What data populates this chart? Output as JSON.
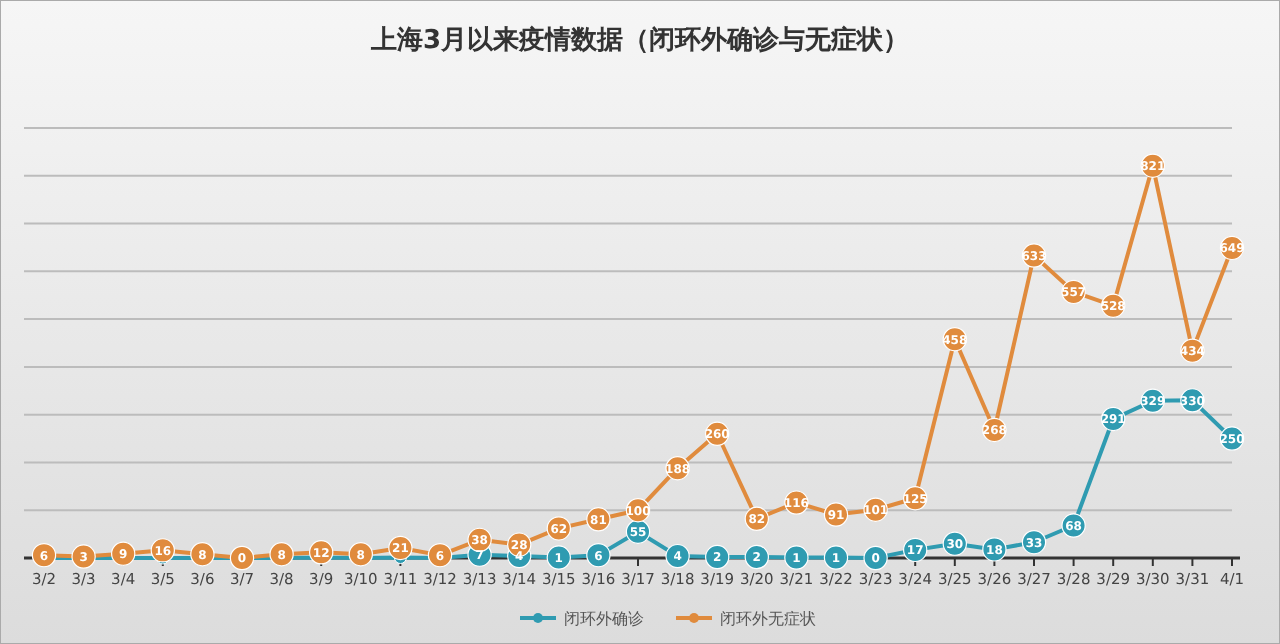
{
  "chart_data": {
    "type": "line",
    "title": "上海3月以来疫情数据（闭环外确诊与无症状）",
    "categories": [
      "3/2",
      "3/3",
      "3/4",
      "3/5",
      "3/6",
      "3/7",
      "3/8",
      "3/9",
      "3/10",
      "3/11",
      "3/12",
      "3/13",
      "3/14",
      "3/15",
      "3/16",
      "3/17",
      "3/18",
      "3/19",
      "3/20",
      "3/21",
      "3/22",
      "3/23",
      "3/24",
      "3/25",
      "3/26",
      "3/27",
      "3/28",
      "3/29",
      "3/30",
      "3/31",
      "4/1"
    ],
    "series": [
      {
        "name": "闭环外确诊",
        "color": "#2f9bb1",
        "values": [
          0,
          0,
          0,
          0,
          0,
          0,
          0,
          1,
          0,
          1,
          0,
          7,
          4,
          1,
          6,
          55,
          4,
          2,
          2,
          1,
          1,
          0,
          17,
          30,
          18,
          33,
          68,
          291,
          329,
          330,
          250
        ],
        "value_labels": [
          null,
          null,
          null,
          null,
          null,
          null,
          null,
          null,
          null,
          null,
          null,
          "7",
          "4",
          "1",
          "6",
          "55",
          "4",
          "2",
          "2",
          "1",
          "1",
          "0",
          "17",
          "30",
          "18",
          "33",
          "68",
          "291",
          "329",
          "330",
          "250"
        ]
      },
      {
        "name": "闭环外无症状",
        "color": "#e08b3d",
        "values": [
          6,
          3,
          9,
          16,
          8,
          0,
          8,
          12,
          8,
          21,
          6,
          38,
          28,
          62,
          81,
          100,
          188,
          260,
          82,
          116,
          91,
          101,
          125,
          458,
          268,
          633,
          557,
          528,
          821,
          434,
          649
        ]
      }
    ],
    "ylim": [
      0,
      900
    ],
    "yticks": [
      {
        "value": 0,
        "label": null
      },
      {
        "value": 100,
        "label": null
      },
      {
        "value": 200,
        "label": null
      },
      {
        "value": 300,
        "label": null
      },
      {
        "value": 400,
        "label": null
      },
      {
        "value": 500,
        "label": null
      },
      {
        "value": 600,
        "label": null
      },
      {
        "value": 700,
        "label": null
      },
      {
        "value": 800,
        "label": null
      },
      {
        "value": 900,
        "label": null
      }
    ],
    "grid": "y",
    "legend": "bottom",
    "marker": "circle",
    "line_style": "solid",
    "data_labels": true
  }
}
